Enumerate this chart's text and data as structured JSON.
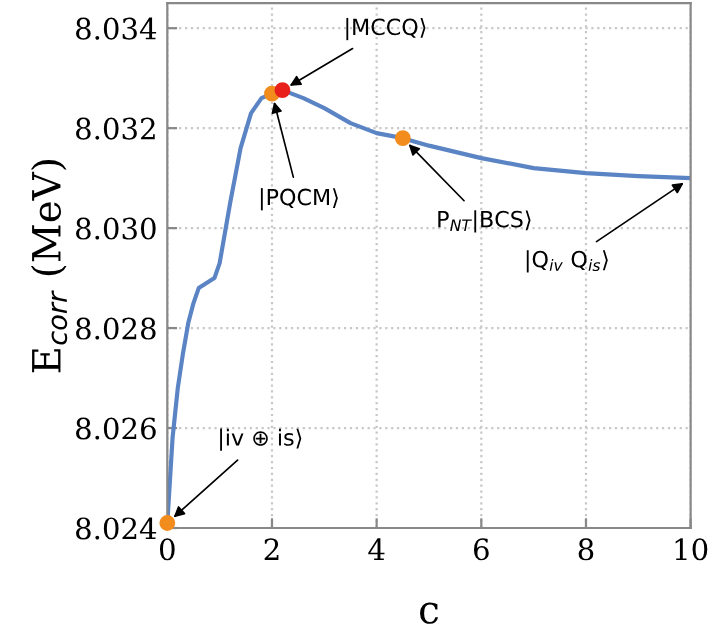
{
  "chart_data": {
    "type": "line",
    "xlabel": "c",
    "ylabel": "E$_{corr}$ (MeV)",
    "xlim": [
      0,
      10
    ],
    "ylim": [
      8.024,
      8.0345
    ],
    "xticks": [
      0,
      2,
      4,
      6,
      8,
      10
    ],
    "yticks": [
      {
        "value": 8.024,
        "label": "8.024"
      },
      {
        "value": 8.026,
        "label": "8.026"
      },
      {
        "value": 8.028,
        "label": "8.028"
      },
      {
        "value": 8.03,
        "label": "8.030"
      },
      {
        "value": 8.032,
        "label": "8.032"
      },
      {
        "value": 8.034,
        "label": "8.034"
      }
    ],
    "grid": true,
    "line_style": "solid",
    "series": [
      {
        "color": "#5b84c4",
        "marker": "none",
        "x": [
          0,
          0.1,
          0.2,
          0.3,
          0.4,
          0.5,
          0.6,
          0.75,
          0.9,
          1.0,
          1.2,
          1.4,
          1.6,
          1.8,
          2.0,
          2.2,
          2.6,
          3.0,
          3.5,
          4.0,
          4.5,
          5,
          6,
          7,
          8,
          9,
          10
        ],
        "values": [
          8.0241,
          8.0258,
          8.0268,
          8.0275,
          8.0281,
          8.0285,
          8.0288,
          8.0289,
          8.029,
          8.0293,
          8.0305,
          8.0316,
          8.0323,
          8.0326,
          8.03269,
          8.03276,
          8.0326,
          8.0324,
          8.0321,
          8.0319,
          8.0318,
          8.03165,
          8.0314,
          8.0312,
          8.0311,
          8.03104,
          8.031
        ]
      },
      {
        "type": "scatter",
        "marker": "circle",
        "x": [
          0,
          2.0,
          2.2,
          4.5
        ],
        "values": [
          8.0241,
          8.03269,
          8.03276,
          8.0318
        ],
        "colors": [
          "#f28c1c",
          "#f28c1c",
          "#e8201c",
          "#f28c1c"
        ]
      }
    ],
    "annotations": [
      {
        "text": "|MCCQ⟩",
        "x": 2.2,
        "y": 8.03276
      },
      {
        "text": "|PQCM⟩",
        "x": 2.0,
        "y": 8.03269
      },
      {
        "text": "P$_{NT}$|BCS⟩",
        "x": 4.5,
        "y": 8.0318
      },
      {
        "text": "|Q$_{iv}$ Q$_{is}$⟩",
        "x": 10,
        "y": 8.031
      },
      {
        "text": "|iv ⊕ is⟩",
        "x": 0,
        "y": 8.0241
      }
    ]
  }
}
